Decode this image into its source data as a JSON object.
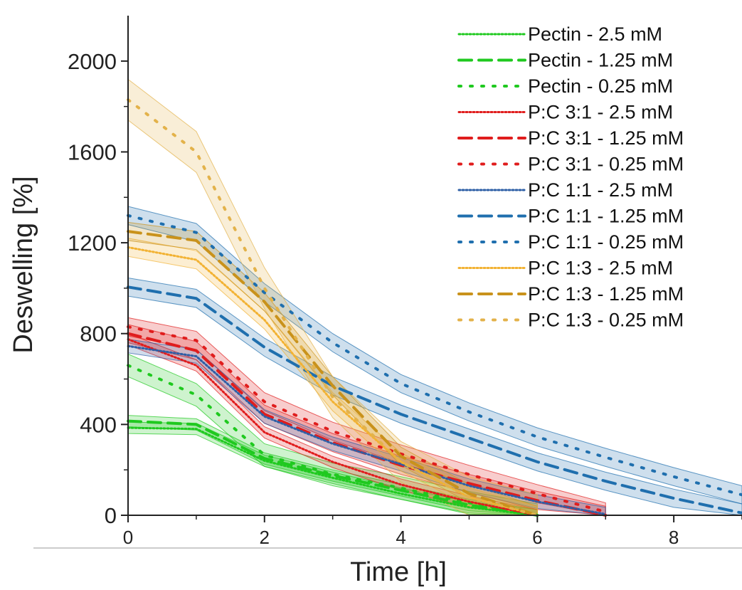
{
  "chart_data": {
    "type": "line",
    "title": "",
    "xlabel": "Time [h]",
    "ylabel": "Deswelling [%]",
    "xlim": [
      0,
      9
    ],
    "ylim": [
      0,
      2200
    ],
    "x_ticks": [
      0,
      2,
      4,
      6,
      8
    ],
    "x_tick_labels": [
      "0",
      "2",
      "4",
      "6",
      "8"
    ],
    "y_ticks": [
      0,
      400,
      800,
      1200,
      1600,
      2000
    ],
    "y_tick_labels": [
      "0",
      "400",
      "800",
      "1200",
      "1600",
      "2000"
    ],
    "grid": false,
    "legend_position": "top-right",
    "x": [
      0,
      1,
      2,
      3,
      4,
      5,
      6,
      7,
      8,
      9
    ],
    "series": [
      {
        "name": "Pectin - 2.5  mM",
        "color": "#1fc91f",
        "dash": "dotted",
        "values": [
          385,
          380,
          240,
          165,
          95,
          35,
          0,
          null,
          null,
          null
        ],
        "band": 25
      },
      {
        "name": "Pectin - 1.25 mM",
        "color": "#1fc91f",
        "dash": "dashed",
        "values": [
          415,
          400,
          250,
          175,
          110,
          45,
          0,
          null,
          null,
          null
        ],
        "band": 25
      },
      {
        "name": "Pectin - 0.25 mM",
        "color": "#1fc91f",
        "dash": "sparse",
        "values": [
          660,
          530,
          265,
          180,
          120,
          55,
          0,
          null,
          null,
          null
        ],
        "band": 50
      },
      {
        "name": "P:C 3:1 - 2.5  mM",
        "color": "#e01d1d",
        "dash": "dotted",
        "values": [
          775,
          660,
          365,
          235,
          135,
          60,
          0,
          null,
          null,
          null
        ],
        "band": 25
      },
      {
        "name": "P:C 3:1 - 1.25 mM",
        "color": "#e01d1d",
        "dash": "dashed",
        "values": [
          800,
          725,
          445,
          320,
          220,
          140,
          65,
          0,
          null,
          null
        ],
        "band": 40
      },
      {
        "name": "P:C 3:1 - 0.25 mM",
        "color": "#e01d1d",
        "dash": "sparse",
        "values": [
          830,
          770,
          500,
          370,
          270,
          180,
          95,
          15,
          null,
          null
        ],
        "band": 40
      },
      {
        "name": "P:C 1:1 - 2.5  mM",
        "color": "#2e5fa6",
        "dash": "dotted",
        "values": [
          745,
          700,
          435,
          315,
          225,
          130,
          60,
          5,
          null,
          null
        ],
        "band": 30
      },
      {
        "name": "P:C 1:1 - 1.25 mM",
        "color": "#1f6fae",
        "dash": "dashed",
        "values": [
          1005,
          955,
          740,
          570,
          445,
          340,
          235,
          150,
          75,
          10
        ],
        "band": 40
      },
      {
        "name": "P:C 1:1 - 0.25 mM",
        "color": "#1f6fae",
        "dash": "sparse",
        "values": [
          1320,
          1245,
          980,
          760,
          580,
          455,
          345,
          255,
          170,
          90
        ],
        "band": 40
      },
      {
        "name": "P:C 1:3 - 2.5  mM",
        "color": "#f2b233",
        "dash": "dotted",
        "values": [
          1180,
          1125,
          860,
          500,
          235,
          80,
          0,
          null,
          null,
          null
        ],
        "band": 40
      },
      {
        "name": "P:C 1:3 - 1.25 mM",
        "color": "#c9921b",
        "dash": "dashed",
        "values": [
          1250,
          1210,
          940,
          570,
          260,
          95,
          0,
          null,
          null,
          null
        ],
        "band": 40
      },
      {
        "name": "P:C 1:3 - 0.25 mM",
        "color": "#e3b24a",
        "dash": "sparse",
        "values": [
          1830,
          1600,
          1000,
          520,
          235,
          80,
          0,
          null,
          null,
          null
        ],
        "band": 90
      }
    ]
  }
}
